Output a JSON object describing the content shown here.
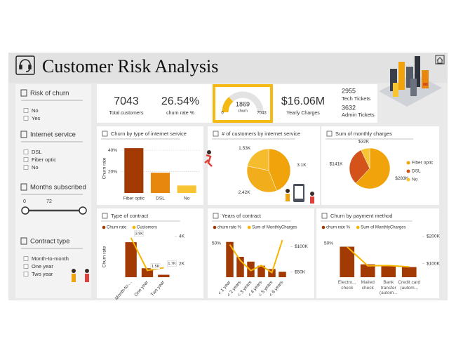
{
  "header": {
    "title": "Customer Risk Analysis"
  },
  "filters": [
    {
      "title": "Risk of churn",
      "options": [
        "No",
        "Yes"
      ]
    },
    {
      "title": "Internet service",
      "options": [
        "DSL",
        "Fiber optic",
        "No"
      ]
    },
    {
      "title": "Months subscribed",
      "range": [
        0,
        72
      ]
    },
    {
      "title": "Contract type",
      "options": [
        "Month-to-month",
        "One year",
        "Two year"
      ]
    }
  ],
  "kpis": {
    "total_customers": {
      "value": 7043,
      "label": "Total customers"
    },
    "churn_rate": {
      "value": "26.54%",
      "label": "churn rate %"
    },
    "churn_gauge": {
      "value": 1869,
      "label": "churn",
      "min": 0,
      "max": 7043
    },
    "yearly_charges": {
      "value": "$16.06M",
      "label": "Yearly Charges"
    },
    "tech_tickets": {
      "value": 2955,
      "label": "Tech Tickets"
    },
    "admin_tickets": {
      "value": 3632,
      "label": "Admin Tickets"
    }
  },
  "chart_data": [
    {
      "type": "bar",
      "title": "Churn by type of internet service",
      "y_label": "Churn rate",
      "categories": [
        "Fiber optic",
        "DSL",
        "No"
      ],
      "values": [
        42,
        19,
        7
      ],
      "colors": [
        "#a33a04",
        "#e8870e",
        "#f7c433"
      ],
      "ylim": [
        0,
        46
      ],
      "yticks": [
        {
          "value": 20,
          "label": "20%"
        },
        {
          "value": 40,
          "label": "40%"
        }
      ],
      "grid": true
    },
    {
      "type": "pie",
      "title": "# of customers by internet service",
      "values": [
        3100,
        2420,
        1530
      ],
      "value_labels": [
        "3.1K",
        "2.42K",
        "1.53K"
      ],
      "colors": [
        "#f0a30a",
        "#f2ad1c",
        "#f5bd2e"
      ]
    },
    {
      "type": "pie",
      "title": "Sum of monthly charges",
      "categories": [
        "Fiber optic",
        "DSL",
        "No"
      ],
      "values": [
        283000,
        141000,
        32000
      ],
      "value_labels": [
        "$283K",
        "$141K",
        "$32K"
      ],
      "colors": [
        "#f0a30a",
        "#d4531a",
        "#f7c433"
      ],
      "legend": "right"
    },
    {
      "type": "combo",
      "title": "Type of contract",
      "y_label": "Churn rate",
      "categories": [
        "Month-to-...",
        "One year",
        "Two year"
      ],
      "series": [
        {
          "name": "Churn rate",
          "color": "#a33a04",
          "values": [
            43,
            11,
            3
          ]
        },
        {
          "name": "Customers",
          "color": "#f7b500",
          "values": [
            3900,
            1500,
            1700
          ],
          "value_labels": [
            "3.9K",
            "1.5K",
            "1.7K"
          ],
          "axis": "y2"
        }
      ],
      "ylim": [
        0,
        50
      ],
      "y2lim": [
        1000,
        4000
      ],
      "y2ticks": [
        {
          "value": 2000,
          "label": "2K"
        },
        {
          "value": 4000,
          "label": "4K"
        }
      ]
    },
    {
      "type": "combo",
      "title": "Years of contract",
      "categories": [
        "< 1 year",
        "< 2 years",
        "< 3 years",
        "< 4 years",
        "< 5 years",
        "< 6 years"
      ],
      "series": [
        {
          "name": "churn rate %",
          "color": "#a33a04",
          "values": [
            52,
            30,
            23,
            17,
            12,
            8
          ]
        },
        {
          "name": "Sum of MonthlyCharges",
          "color": "#f7b500",
          "values": [
            104000,
            73000,
            53000,
            63000,
            49000,
            113000
          ],
          "axis": "y2"
        }
      ],
      "ylim": [
        0,
        60
      ],
      "yticks": [
        {
          "value": 50,
          "label": "50%"
        }
      ],
      "y2lim": [
        40000,
        120000
      ],
      "y2ticks": [
        {
          "value": 50000,
          "label": "$50K"
        },
        {
          "value": 100000,
          "label": "$100K"
        }
      ]
    },
    {
      "type": "combo",
      "title": "Churn by payment method",
      "wrap_labels": true,
      "categories": [
        "Electro... check",
        "Mailed check",
        "Bank transfer (autom...",
        "Credit card (autom..."
      ],
      "series": [
        {
          "name": "churn rate %",
          "color": "#a33a04",
          "values": [
            45,
            19,
            17,
            15
          ]
        },
        {
          "name": "Sum of MonthlyCharges",
          "color": "#f7b500",
          "values": [
            162000,
            92000,
            93000,
            88000
          ],
          "axis": "y2"
        }
      ],
      "ylim": [
        0,
        60
      ],
      "yticks": [
        {
          "value": 50,
          "label": "50%"
        }
      ],
      "y2lim": [
        50000,
        200000
      ],
      "y2ticks": [
        {
          "value": 100000,
          "label": "$100K"
        },
        {
          "value": 200000,
          "label": "$200K"
        }
      ]
    }
  ]
}
